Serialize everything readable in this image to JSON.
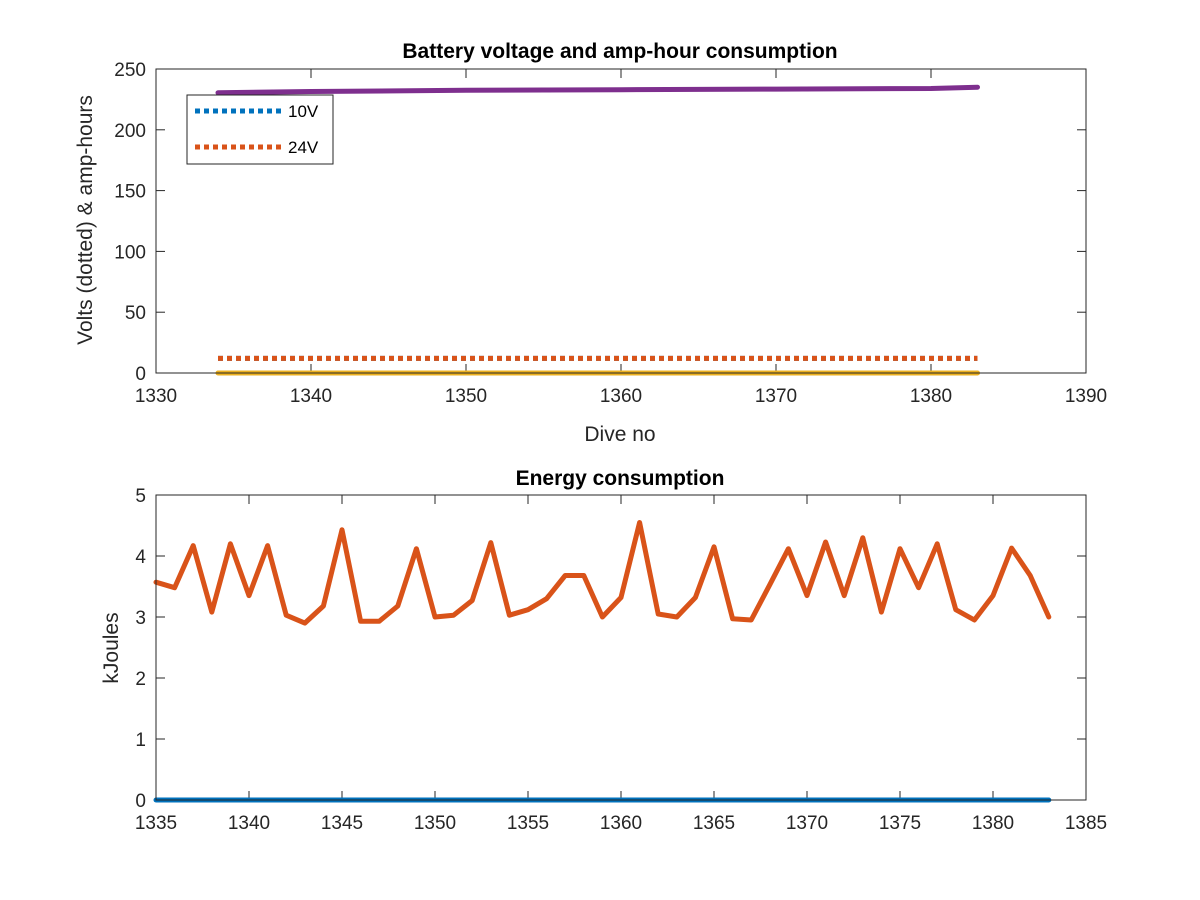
{
  "chart_data": [
    {
      "type": "line",
      "title": "Battery voltage and amp-hour consumption",
      "xlabel": "Dive no",
      "ylabel": "Volts (dotted) & amp-hours",
      "xlim": [
        1330,
        1390
      ],
      "ylim": [
        0,
        250
      ],
      "xticks": [
        "1330",
        "1340",
        "1350",
        "1360",
        "1370",
        "1380",
        "1390"
      ],
      "yticks": [
        "0",
        "50",
        "100",
        "150",
        "200",
        "250"
      ],
      "grid": false,
      "legend_position": "top-left",
      "legend": [
        "10V",
        "24V"
      ],
      "series": [
        {
          "name": "10V",
          "style": "dotted",
          "color": "#0072BD",
          "x": [
            1334,
            1383
          ],
          "y": [
            12,
            12
          ]
        },
        {
          "name": "24V",
          "style": "dotted",
          "color": "#D95319",
          "x": [
            1334,
            1383
          ],
          "y": [
            12,
            12
          ]
        },
        {
          "style": "solid",
          "color": "#EDB120",
          "x": [
            1334,
            1383
          ],
          "y": [
            0,
            0
          ]
        },
        {
          "style": "solid",
          "color": "#7E2F8E",
          "x": [
            1334,
            1340,
            1350,
            1360,
            1370,
            1380,
            1383
          ],
          "y": [
            230.5,
            231.5,
            232.5,
            233,
            233.5,
            234,
            235
          ]
        }
      ]
    },
    {
      "type": "line",
      "title": "Energy consumption",
      "xlabel": "",
      "ylabel": "kJoules",
      "xlim": [
        1335,
        1385
      ],
      "ylim": [
        0,
        5
      ],
      "xticks": [
        "1335",
        "1340",
        "1345",
        "1350",
        "1355",
        "1360",
        "1365",
        "1370",
        "1375",
        "1380",
        "1385"
      ],
      "yticks": [
        "0",
        "1",
        "2",
        "3",
        "4",
        "5"
      ],
      "grid": false,
      "series": [
        {
          "style": "solid",
          "color": "#0072BD",
          "x": [
            1335,
            1383
          ],
          "y": [
            0,
            0
          ]
        },
        {
          "style": "solid",
          "color": "#D95319",
          "x": [
            1335,
            1336,
            1337,
            1338,
            1339,
            1340,
            1341,
            1342,
            1343,
            1344,
            1345,
            1346,
            1347,
            1348,
            1349,
            1350,
            1351,
            1352,
            1353,
            1354,
            1355,
            1356,
            1357,
            1358,
            1359,
            1360,
            1361,
            1362,
            1363,
            1364,
            1365,
            1366,
            1367,
            1368,
            1369,
            1370,
            1371,
            1372,
            1373,
            1374,
            1375,
            1376,
            1377,
            1378,
            1379,
            1380,
            1381,
            1382,
            1383
          ],
          "y": [
            3.57,
            3.48,
            4.17,
            3.08,
            4.2,
            3.35,
            4.17,
            3.03,
            2.9,
            3.18,
            4.43,
            2.93,
            2.93,
            3.18,
            4.12,
            3.0,
            3.03,
            3.27,
            4.22,
            3.03,
            3.12,
            3.3,
            3.68,
            3.68,
            3.0,
            3.32,
            4.55,
            3.05,
            3.0,
            3.32,
            4.15,
            2.97,
            2.95,
            3.53,
            4.12,
            3.35,
            4.23,
            3.35,
            4.3,
            3.08,
            4.12,
            3.48,
            4.2,
            3.12,
            2.95,
            3.35,
            4.13,
            3.68,
            3.0
          ]
        }
      ]
    }
  ]
}
